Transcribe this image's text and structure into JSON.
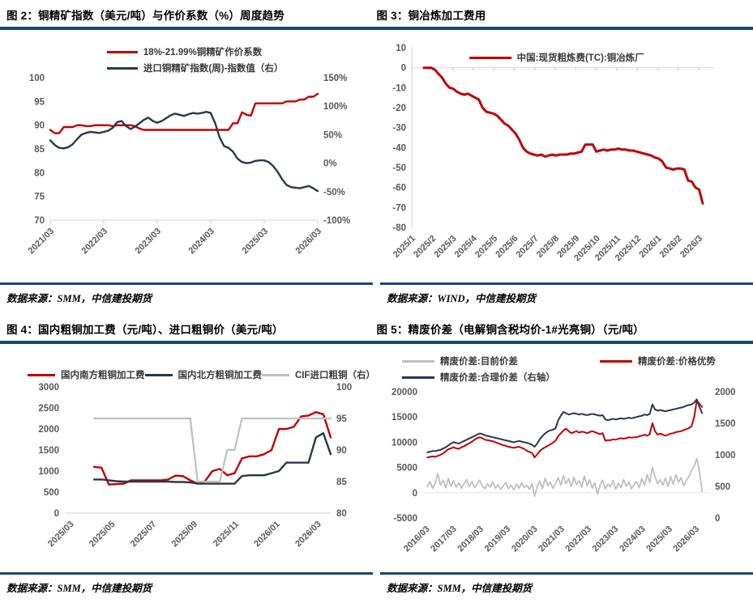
{
  "page": {
    "rule_color": "#1c4670",
    "background": "#ffffff"
  },
  "chart_data": [
    {
      "id": "figure-2",
      "type": "line",
      "title": "图 2：铜精矿指数（美元/吨）与作价系数（%）周度趋势",
      "source": "数据来源：SMM，中信建投期货",
      "legend": [
        {
          "label": "18%-21.99%铜精矿作价系数",
          "color": "#c00000",
          "row": 0
        },
        {
          "label": "进口铜精矿指数(周)-指数值（右）",
          "color": "#263949",
          "row": 1
        }
      ],
      "left_axis": {
        "min": 70,
        "max": 100,
        "ticks": [
          100,
          95,
          90,
          85,
          80,
          75,
          70
        ],
        "suffix": ""
      },
      "right_axis": {
        "min": -100,
        "max": 150,
        "ticks": [
          150,
          100,
          50,
          0,
          -50,
          -100
        ],
        "suffix": "%"
      },
      "baseline": 70,
      "x_ticks": {
        "labels": [
          "2021/03",
          "2022/03",
          "2023/03",
          "2024/03",
          "2025/03",
          "2026/03"
        ],
        "fracs": [
          0,
          0.2,
          0.4,
          0.6,
          0.8,
          1
        ]
      },
      "series": [
        {
          "key": "pricing-coefficient",
          "name": "18%-21.99%铜精矿作价系数",
          "color": "#c00000",
          "axis": "left",
          "width": 2.4,
          "x_start": 0,
          "x_end": 1,
          "values": [
            89,
            88.3,
            88.3,
            89.6,
            89.6,
            89.6,
            90,
            90,
            89.8,
            89.8,
            90,
            90,
            90,
            90,
            89.8,
            90,
            90,
            90,
            90,
            89.8,
            89.3,
            89,
            89,
            89,
            89,
            89,
            89,
            89,
            89,
            89,
            89,
            89,
            89,
            89,
            89,
            89,
            89,
            89,
            89,
            89,
            89,
            90.4,
            90.4,
            92.7,
            92.2,
            92,
            94.6,
            94.6,
            94.6,
            94.6,
            94.6,
            94.6,
            94.6,
            95,
            95,
            95,
            95.4,
            95.4,
            96,
            96,
            96.6
          ]
        },
        {
          "key": "import-concentrate-index",
          "name": "进口铜精矿指数(周)-指数值（右）",
          "color": "#263949",
          "axis": "right",
          "width": 2.4,
          "x_start": 0,
          "x_end": 1,
          "values": [
            40,
            32,
            27,
            26,
            28,
            33,
            42,
            50,
            53,
            55,
            54,
            53,
            55,
            57,
            62,
            72,
            74,
            65,
            60,
            64,
            70,
            76,
            80,
            74,
            71,
            74,
            79,
            84,
            87,
            85,
            83,
            86,
            88,
            87,
            88,
            90,
            88,
            70,
            45,
            30,
            27,
            20,
            8,
            2,
            0,
            1,
            4,
            5,
            5,
            2,
            -5,
            -15,
            -28,
            -38,
            -42,
            -43,
            -44,
            -42,
            -40,
            -44,
            -49
          ]
        }
      ]
    },
    {
      "id": "figure-3",
      "type": "line",
      "title": "图 3：铜冶炼加工费用",
      "source": "数据来源：WIND，中信建投期货",
      "legend": [
        {
          "label": "中国:现货粗炼费(TC):铜冶炼厂",
          "color": "#c00000",
          "row": 0
        }
      ],
      "left_axis": {
        "min": -80,
        "max": 10,
        "ticks": [
          10,
          0,
          -10,
          -20,
          -30,
          -40,
          -50,
          -60,
          -70,
          -80
        ],
        "suffix": ""
      },
      "baseline": 0,
      "x_ticks": {
        "labels": [
          "2025/1",
          "2025/2",
          "2025/3",
          "2025/4",
          "2025/5",
          "2025/6",
          "2025/7",
          "2025/8",
          "2025/9",
          "2025/10",
          "2025/11",
          "2025/12",
          "2026/1",
          "2026/2",
          "2026/3"
        ],
        "fracs": [
          0,
          0.068,
          0.136,
          0.204,
          0.272,
          0.34,
          0.408,
          0.476,
          0.544,
          0.612,
          0.68,
          0.748,
          0.816,
          0.884,
          0.952
        ]
      },
      "series": [
        {
          "key": "spot-tc-fee",
          "name": "中国:现货粗炼费(TC):铜冶炼厂",
          "color": "#c00000",
          "axis": "left",
          "width": 3,
          "x_start": 0.04,
          "x_end": 0.965,
          "values": [
            0,
            0,
            0,
            -1,
            -3,
            -5,
            -8,
            -10,
            -10.5,
            -12,
            -13,
            -13.5,
            -13,
            -14,
            -15,
            -16,
            -20,
            -22,
            -22.5,
            -23,
            -24,
            -26,
            -28,
            -29,
            -31,
            -33,
            -36,
            -40,
            -42,
            -43,
            -43.5,
            -44,
            -43.5,
            -44.5,
            -44,
            -43.5,
            -44,
            -43.5,
            -43.5,
            -43.5,
            -43,
            -43,
            -42.5,
            -42,
            -38.5,
            -38.5,
            -38.5,
            -42,
            -41.5,
            -41,
            -41.5,
            -41,
            -41,
            -40.5,
            -41,
            -41,
            -41.5,
            -41.5,
            -42,
            -42.5,
            -43,
            -43.5,
            -44,
            -45,
            -45.5,
            -47,
            -50,
            -50.5,
            -51,
            -50.5,
            -50.5,
            -51,
            -56.5,
            -57,
            -60,
            -61,
            -68
          ]
        }
      ]
    },
    {
      "id": "figure-4",
      "type": "line",
      "title": "图 4：国内粗铜加工费（元/吨）、进口粗铜价（美元/吨）",
      "source": "数据来源：SMM，中信建投期货",
      "legend": [
        {
          "label": "国内南方粗铜加工费",
          "color": "#c00000",
          "row": 0
        },
        {
          "label": "国内北方粗铜加工费",
          "color": "#263949",
          "row": 0
        },
        {
          "label": "CIF进口粗铜（右）",
          "color": "#bfbfbf",
          "row": 0
        }
      ],
      "left_axis": {
        "min": 0,
        "max": 3000,
        "ticks": [
          3000,
          2500,
          2000,
          1500,
          1000,
          500,
          0
        ],
        "suffix": ""
      },
      "right_axis": {
        "min": 80,
        "max": 100,
        "ticks": [
          100,
          95,
          90,
          85,
          80
        ],
        "suffix": ""
      },
      "baseline": 0,
      "x_ticks": {
        "labels": [
          "2025/03",
          "2025/05",
          "2025/07",
          "2025/09",
          "2025/11",
          "2026/01",
          "2026/03"
        ],
        "fracs": [
          0.02,
          0.175,
          0.33,
          0.485,
          0.64,
          0.795,
          0.95
        ]
      },
      "series": [
        {
          "key": "south-rough-copper-fee",
          "name": "国内南方粗铜加工费",
          "color": "#c00000",
          "axis": "left",
          "width": 2.4,
          "x_start": 0.11,
          "x_end": 1,
          "values": [
            1100,
            1080,
            680,
            690,
            700,
            780,
            780,
            780,
            780,
            780,
            800,
            890,
            880,
            780,
            700,
            760,
            1000,
            1050,
            900,
            950,
            1300,
            1350,
            1350,
            1400,
            1500,
            2000,
            2000,
            2050,
            2300,
            2320,
            2400,
            2350,
            1800
          ]
        },
        {
          "key": "north-rough-copper-fee",
          "name": "国内北方粗铜加工费",
          "color": "#263949",
          "axis": "left",
          "width": 2.4,
          "x_start": 0.11,
          "x_end": 1,
          "values": [
            800,
            800,
            780,
            760,
            750,
            750,
            750,
            750,
            750,
            750,
            750,
            740,
            740,
            730,
            700,
            700,
            700,
            700,
            700,
            700,
            880,
            900,
            900,
            900,
            950,
            1000,
            1200,
            1200,
            1200,
            1200,
            1800,
            1900,
            1400
          ]
        },
        {
          "key": "cif-import-rough-copper",
          "name": "CIF进口粗铜（右）",
          "color": "#bfbfbf",
          "axis": "right",
          "width": 2.2,
          "x_start": 0.11,
          "x_end": 1,
          "values": [
            95,
            95,
            95,
            95,
            95,
            95,
            95,
            95,
            95,
            95,
            95,
            95,
            95,
            95,
            85,
            85,
            85,
            85,
            90,
            90,
            95,
            95,
            95,
            95,
            95,
            95,
            95,
            95,
            95,
            95,
            95,
            95,
            95
          ]
        }
      ]
    },
    {
      "id": "figure-5",
      "type": "line",
      "title": "图 5：精废价差（电解铜含税均价-1#光亮铜）（元/吨）",
      "source": "数据来源：SMM，中信建投期货",
      "legend": [
        {
          "label": "精废价差:目前价差",
          "color": "#bfbfbf",
          "row": 0
        },
        {
          "label": "精废价差:价格优势",
          "color": "#c00000",
          "row": 0
        },
        {
          "label": "精废价差:合理价差（右轴）",
          "color": "#263949",
          "row": 1
        }
      ],
      "left_axis": {
        "min": -5000,
        "max": 20000,
        "ticks": [
          20000,
          15000,
          10000,
          5000,
          0,
          -5000
        ],
        "suffix": ""
      },
      "right_axis": {
        "min": 0,
        "max": 2000,
        "ticks": [
          2000,
          1500,
          1000,
          500,
          0
        ],
        "suffix": ""
      },
      "baseline": 0,
      "x_ticks": {
        "labels": [
          "2016/03",
          "2017/03",
          "2018/03",
          "2019/03",
          "2020/03",
          "2021/03",
          "2022/03",
          "2023/03",
          "2024/03",
          "2025/03",
          "2026/03"
        ],
        "fracs": [
          0.01,
          0.104,
          0.198,
          0.292,
          0.387,
          0.481,
          0.575,
          0.669,
          0.764,
          0.858,
          0.952
        ]
      },
      "series": [
        {
          "key": "current-spread",
          "name": "精废价差:目前价差",
          "color": "#bfbfbf",
          "axis": "left",
          "width": 1.8,
          "x_start": 0.015,
          "x_end": 0.975,
          "values": [
            1200,
            2200,
            900,
            1900,
            3800,
            1500,
            2500,
            1000,
            2800,
            1300,
            2400,
            1100,
            2000,
            900,
            1800,
            2600,
            1200,
            2200,
            1000,
            1700,
            2500,
            1300,
            800,
            1800,
            1100,
            2100,
            900,
            1600,
            700,
            1400,
            2000,
            800,
            1500,
            600,
            1700,
            900,
            1900,
            1000,
            1500,
            700,
            1800,
            -700,
            1200,
            2300,
            800,
            2900,
            1400,
            2100,
            900,
            1800,
            3000,
            1500,
            3400,
            1800,
            2800,
            1200,
            3100,
            1600,
            2400,
            1100,
            3300,
            1400,
            2600,
            900,
            2000,
            -300,
            1500,
            2500,
            800,
            1700,
            1200,
            2400,
            700,
            1900,
            1000,
            2600,
            1300,
            2100,
            800,
            1600,
            2200,
            1000,
            2800,
            1500,
            3600,
            2000,
            5000,
            3200,
            1800,
            2600,
            1500,
            2900,
            1200,
            3200,
            1700,
            3600,
            2100,
            3000,
            1400,
            2500,
            3200,
            4500,
            5200,
            6800,
            4200,
            300
          ]
        },
        {
          "key": "price-advantage",
          "name": "精废价差:价格优势",
          "color": "#c00000",
          "axis": "left",
          "width": 2,
          "x_start": 0.015,
          "x_end": 0.975,
          "values": [
            7000,
            7100,
            7200,
            7100,
            7300,
            7500,
            7800,
            8200,
            8600,
            8800,
            9000,
            8800,
            8700,
            9000,
            9200,
            9500,
            9800,
            10100,
            10500,
            10800,
            11000,
            10800,
            10500,
            10400,
            10300,
            10200,
            10000,
            9800,
            9600,
            9400,
            9300,
            9100,
            9000,
            8900,
            9000,
            9100,
            8900,
            8700,
            8300,
            8100,
            7900,
            7000,
            7600,
            8300,
            8700,
            9000,
            9300,
            9600,
            9900,
            10300,
            11200,
            11800,
            12300,
            12700,
            12200,
            11800,
            12000,
            12200,
            11900,
            12100,
            12000,
            11800,
            12000,
            12200,
            12000,
            11800,
            11600,
            11800,
            10300,
            10400,
            10400,
            10600,
            10500,
            10700,
            10800,
            10700,
            10800,
            11000,
            10900,
            11000,
            11000,
            11200,
            11300,
            11500,
            11300,
            11600,
            13800,
            12200,
            11500,
            11700,
            11500,
            11300,
            11500,
            11700,
            11800,
            12000,
            12100,
            12200,
            12400,
            12600,
            12800,
            13200,
            15000,
            18300,
            17600,
            17000
          ]
        },
        {
          "key": "reasonable-spread",
          "name": "精废价差:合理价差（右轴）",
          "color": "#263949",
          "axis": "right",
          "width": 2,
          "x_start": 0.015,
          "x_end": 0.975,
          "values": [
            1040,
            1050,
            1060,
            1060,
            1070,
            1080,
            1100,
            1120,
            1150,
            1180,
            1200,
            1190,
            1180,
            1200,
            1220,
            1240,
            1260,
            1280,
            1300,
            1320,
            1340,
            1330,
            1310,
            1300,
            1290,
            1280,
            1270,
            1260,
            1250,
            1240,
            1230,
            1220,
            1210,
            1200,
            1210,
            1220,
            1210,
            1200,
            1190,
            1180,
            1160,
            1130,
            1180,
            1250,
            1300,
            1340,
            1370,
            1390,
            1400,
            1420,
            1550,
            1620,
            1680,
            1660,
            1640,
            1650,
            1660,
            1650,
            1640,
            1650,
            1640,
            1630,
            1640,
            1650,
            1640,
            1630,
            1620,
            1630,
            1560,
            1550,
            1560,
            1570,
            1560,
            1570,
            1580,
            1570,
            1580,
            1590,
            1580,
            1590,
            1600,
            1610,
            1620,
            1640,
            1630,
            1650,
            1800,
            1720,
            1700,
            1710,
            1700,
            1690,
            1700,
            1710,
            1720,
            1730,
            1740,
            1750,
            1760,
            1780,
            1790,
            1800,
            1830,
            1880,
            1760,
            1660
          ]
        }
      ]
    }
  ]
}
